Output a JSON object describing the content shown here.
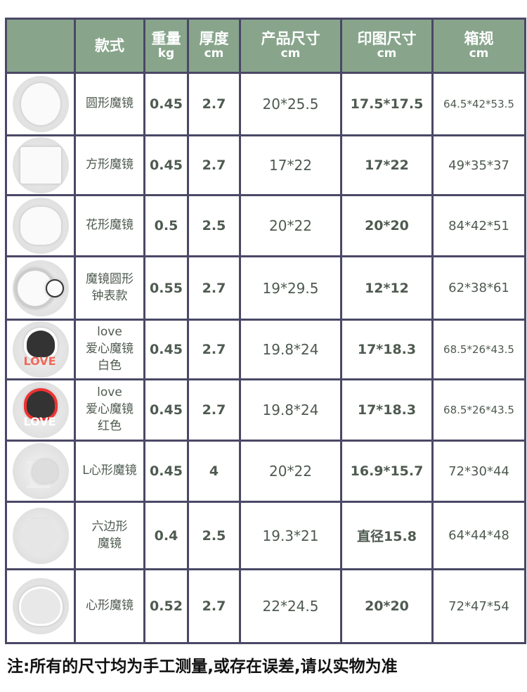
{
  "header": {
    "image_col": "",
    "style": "款式",
    "weight": "重量",
    "weight_unit": "kg",
    "thickness": "厚度",
    "thickness_unit": "cm",
    "product_size": "产品尺寸",
    "product_size_unit": "cm",
    "print_size": "印图尺寸",
    "print_size_unit": "cm",
    "carton": "箱规",
    "carton_unit": "cm"
  },
  "rows": [
    {
      "thumb": "round-mirror",
      "name": "圆形魔镜",
      "weight": "0.45",
      "thickness": "2.7",
      "product_size": "20*25.5",
      "print_size": "17.5*17.5",
      "carton": "64.5*42*53.5"
    },
    {
      "thumb": "square-mirror",
      "name": "方形魔镜",
      "weight": "0.45",
      "thickness": "2.7",
      "product_size": "17*22",
      "print_size": "17*22",
      "carton": "49*35*37"
    },
    {
      "thumb": "flower-mirror",
      "name": "花形魔镜",
      "weight": "0.5",
      "thickness": "2.5",
      "product_size": "20*22",
      "print_size": "20*20",
      "carton": "84*42*51"
    },
    {
      "thumb": "clock-mirror",
      "name": "魔镜圆形\n钟表款",
      "weight": "0.55",
      "thickness": "2.7",
      "product_size": "19*29.5",
      "print_size": "12*12",
      "carton": "62*38*61"
    },
    {
      "thumb": "love-heart-white",
      "name": "love\n爱心魔镜\n白色",
      "weight": "0.45",
      "thickness": "2.7",
      "product_size": "19.8*24",
      "print_size": "17*18.3",
      "carton": "68.5*26*43.5"
    },
    {
      "thumb": "love-heart-red",
      "name": "love\n爱心魔镜\n红色",
      "weight": "0.45",
      "thickness": "2.7",
      "product_size": "19.8*24",
      "print_size": "17*18.3",
      "carton": "68.5*26*43.5"
    },
    {
      "thumb": "l-heart-mirror",
      "name": "L心形魔镜",
      "weight": "0.45",
      "thickness": "4",
      "product_size": "20*22",
      "print_size": "16.9*15.7",
      "carton": "72*30*44"
    },
    {
      "thumb": "hexagon-mirror",
      "name": "六边形\n魔镜",
      "weight": "0.4",
      "thickness": "2.5",
      "product_size": "19.3*21",
      "print_size": "直径15.8",
      "carton": "64*44*48"
    },
    {
      "thumb": "heart-mirror",
      "name": "心形魔镜",
      "weight": "0.52",
      "thickness": "2.7",
      "product_size": "22*24.5",
      "print_size": "20*20",
      "carton": "72*47*54"
    }
  ],
  "footer": "注:所有的尺寸均为手工测量,或存在误差,请以实物为准",
  "colors": {
    "header_bg": "#88a58c",
    "border": "#4a4866",
    "text": "#4e5a50"
  }
}
